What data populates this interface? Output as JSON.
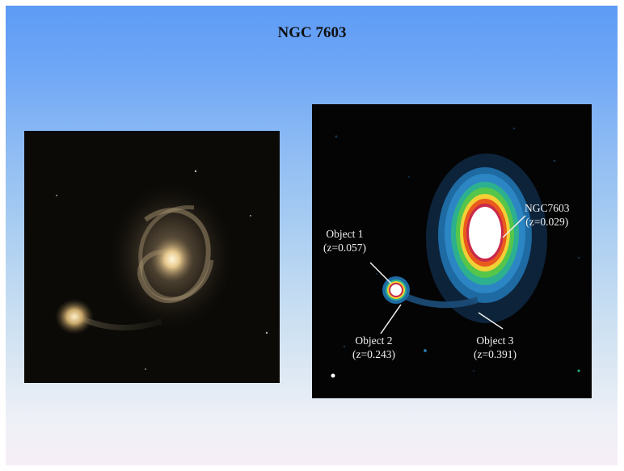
{
  "title": "NGC 7603",
  "annotations": {
    "ngc7603": {
      "name": "NGC7603",
      "redshift": "(z=0.029)"
    },
    "object1": {
      "name": "Object 1",
      "redshift": "(z=0.057)"
    },
    "object2": {
      "name": "Object 2",
      "redshift": "(z=0.243)"
    },
    "object3": {
      "name": "Object 3",
      "redshift": "(z=0.391)"
    }
  },
  "colors": {
    "slide_top": "#5d9bf5",
    "slide_bottom": "#f7eef7",
    "panel_background": "#040404",
    "label_text": "#f2f2f2"
  }
}
